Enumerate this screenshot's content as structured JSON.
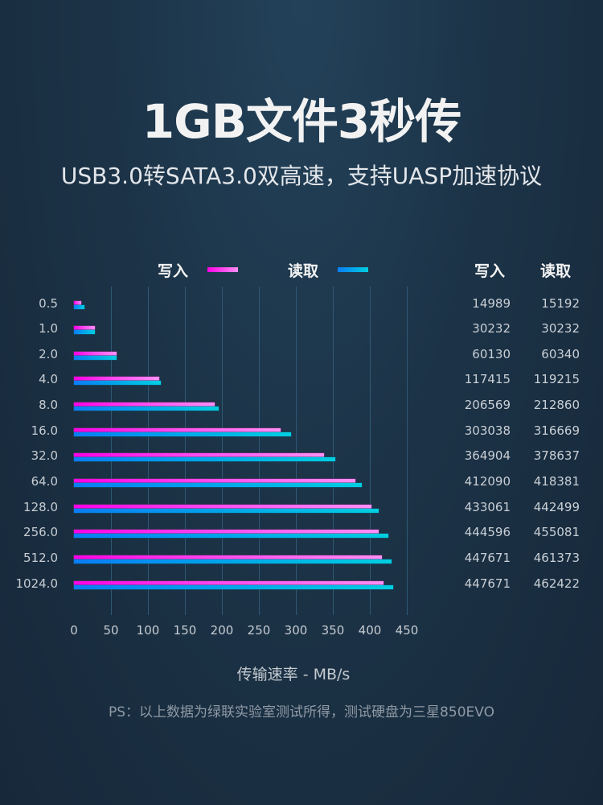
{
  "header": {
    "title": "1GB文件3秒传",
    "subtitle": "USB3.0转SATA3.0双高速，支持UASP加速协议"
  },
  "legend": {
    "write_label": "写入",
    "read_label": "读取",
    "write_color": "#ff00e6",
    "read_color": "#00a7ea"
  },
  "table": {
    "write_header": "写入",
    "read_header": "读取"
  },
  "chart_data": {
    "type": "bar",
    "orientation": "horizontal",
    "title": "",
    "xlabel": "传输速率 - MB/s",
    "ylabel": "",
    "xlim": [
      0,
      450
    ],
    "xticks": [
      0,
      50,
      100,
      150,
      200,
      250,
      300,
      350,
      400,
      450
    ],
    "grid": true,
    "legend_position": "top",
    "categories": [
      "0.5",
      "1.0",
      "2.0",
      "4.0",
      "8.0",
      "16.0",
      "32.0",
      "64.0",
      "128.0",
      "256.0",
      "512.0",
      "1024.0"
    ],
    "series": [
      {
        "name": "写入",
        "raw_values": [
          14989,
          30232,
          60130,
          117415,
          206569,
          303038,
          364904,
          412090,
          433061,
          444596,
          447671,
          447671
        ],
        "values": [
          10,
          28,
          58,
          115,
          190,
          279,
          338,
          380,
          402,
          412,
          416,
          418
        ]
      },
      {
        "name": "读取",
        "raw_values": [
          15192,
          30232,
          60340,
          119215,
          212860,
          316669,
          378637,
          418381,
          442499,
          455081,
          461373,
          462422
        ],
        "values": [
          14,
          28,
          58,
          117,
          196,
          293,
          353,
          389,
          412,
          425,
          429,
          431
        ]
      }
    ]
  },
  "axis": {
    "x_title": "传输速率 - MB/s"
  },
  "footnote": "PS：以上数据为绿联实验室测试所得，测试硬盘为三星850EVO"
}
